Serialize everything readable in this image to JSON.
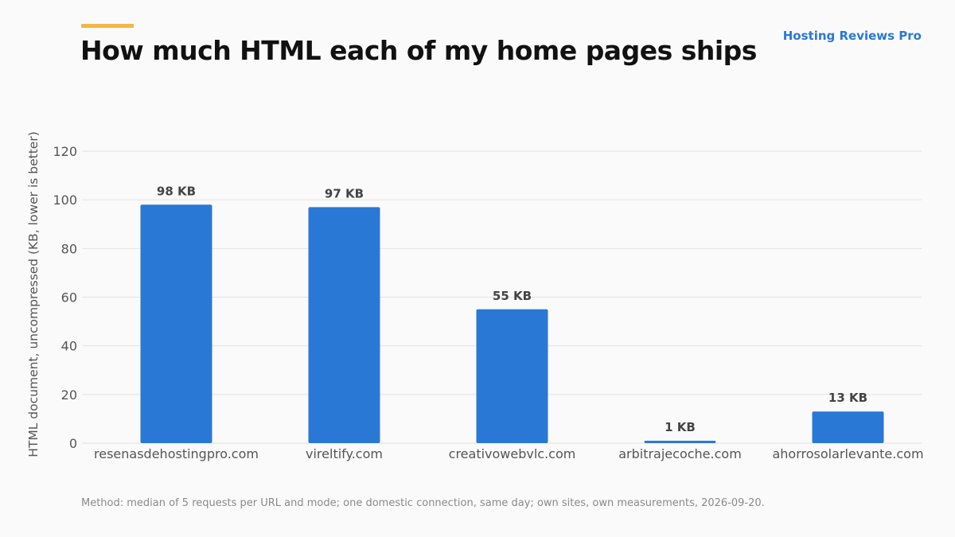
{
  "brand": "Hosting Reviews Pro",
  "colors": {
    "accent": "#f4b544",
    "bar": "#2a78d6",
    "brand": "#2a78d6",
    "grid": "#e3e3e3",
    "axis_text": "#555555",
    "label_text": "#444444"
  },
  "footnote": "Method: median of 5 requests per URL and mode; one domestic connection, same day; own sites, own measurements, 2026-09-20.",
  "chart_data": {
    "type": "bar",
    "title": "How much HTML each of my home pages ships",
    "xlabel": "",
    "ylabel": "HTML document, uncompressed (KB, lower is better)",
    "categories": [
      "resenasdehostingpro.com",
      "vireltify.com",
      "creativowebvlc.com",
      "arbitrajecoche.com",
      "ahorrosolarlevante.com"
    ],
    "values": [
      98,
      97,
      55,
      1,
      13
    ],
    "value_labels": [
      "98 KB",
      "97 KB",
      "55 KB",
      "1 KB",
      "13 KB"
    ],
    "ylim": [
      0,
      120
    ],
    "yticks": [
      "0",
      "20",
      "40",
      "60",
      "80",
      "100",
      "120"
    ],
    "grid": true,
    "legend": "none"
  }
}
